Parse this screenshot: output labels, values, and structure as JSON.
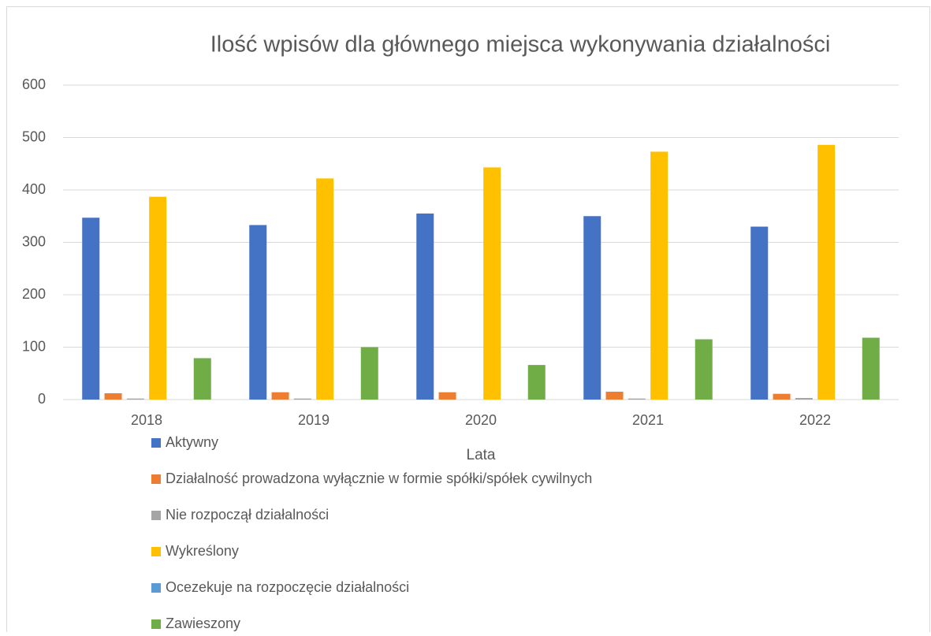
{
  "chart_data": {
    "type": "bar",
    "title": "Ilość wpisów dla głównego miejsca wykonywania działalności",
    "x_label": "Lata",
    "categories": [
      "2018",
      "2019",
      "2020",
      "2021",
      "2022"
    ],
    "series": [
      {
        "name": "Aktywny",
        "color": "#4472c4",
        "values": [
          347,
          333,
          355,
          350,
          330
        ]
      },
      {
        "name": "Działalność prowadzona wyłącznie w formie spółki/spółek cywilnych",
        "color": "#ed7d31",
        "values": [
          12,
          14,
          14,
          15,
          11
        ]
      },
      {
        "name": "Nie rozpoczął działalności",
        "color": "#a5a5a5",
        "values": [
          2,
          2,
          0,
          2,
          3
        ]
      },
      {
        "name": "Wykreślony",
        "color": "#ffc000",
        "values": [
          387,
          422,
          443,
          473,
          486
        ]
      },
      {
        "name": "Ocezekuje na rozpoczęcie działalności",
        "color": "#5b9bd5",
        "values": [
          0,
          0,
          0,
          0,
          0
        ]
      },
      {
        "name": "Zawieszony",
        "color": "#70ad47",
        "values": [
          79,
          100,
          66,
          115,
          118
        ]
      }
    ],
    "ylim": [
      0,
      600
    ],
    "yticks": [
      0,
      100,
      200,
      300,
      400,
      500,
      600
    ],
    "grid": true,
    "legend": "bottom"
  }
}
